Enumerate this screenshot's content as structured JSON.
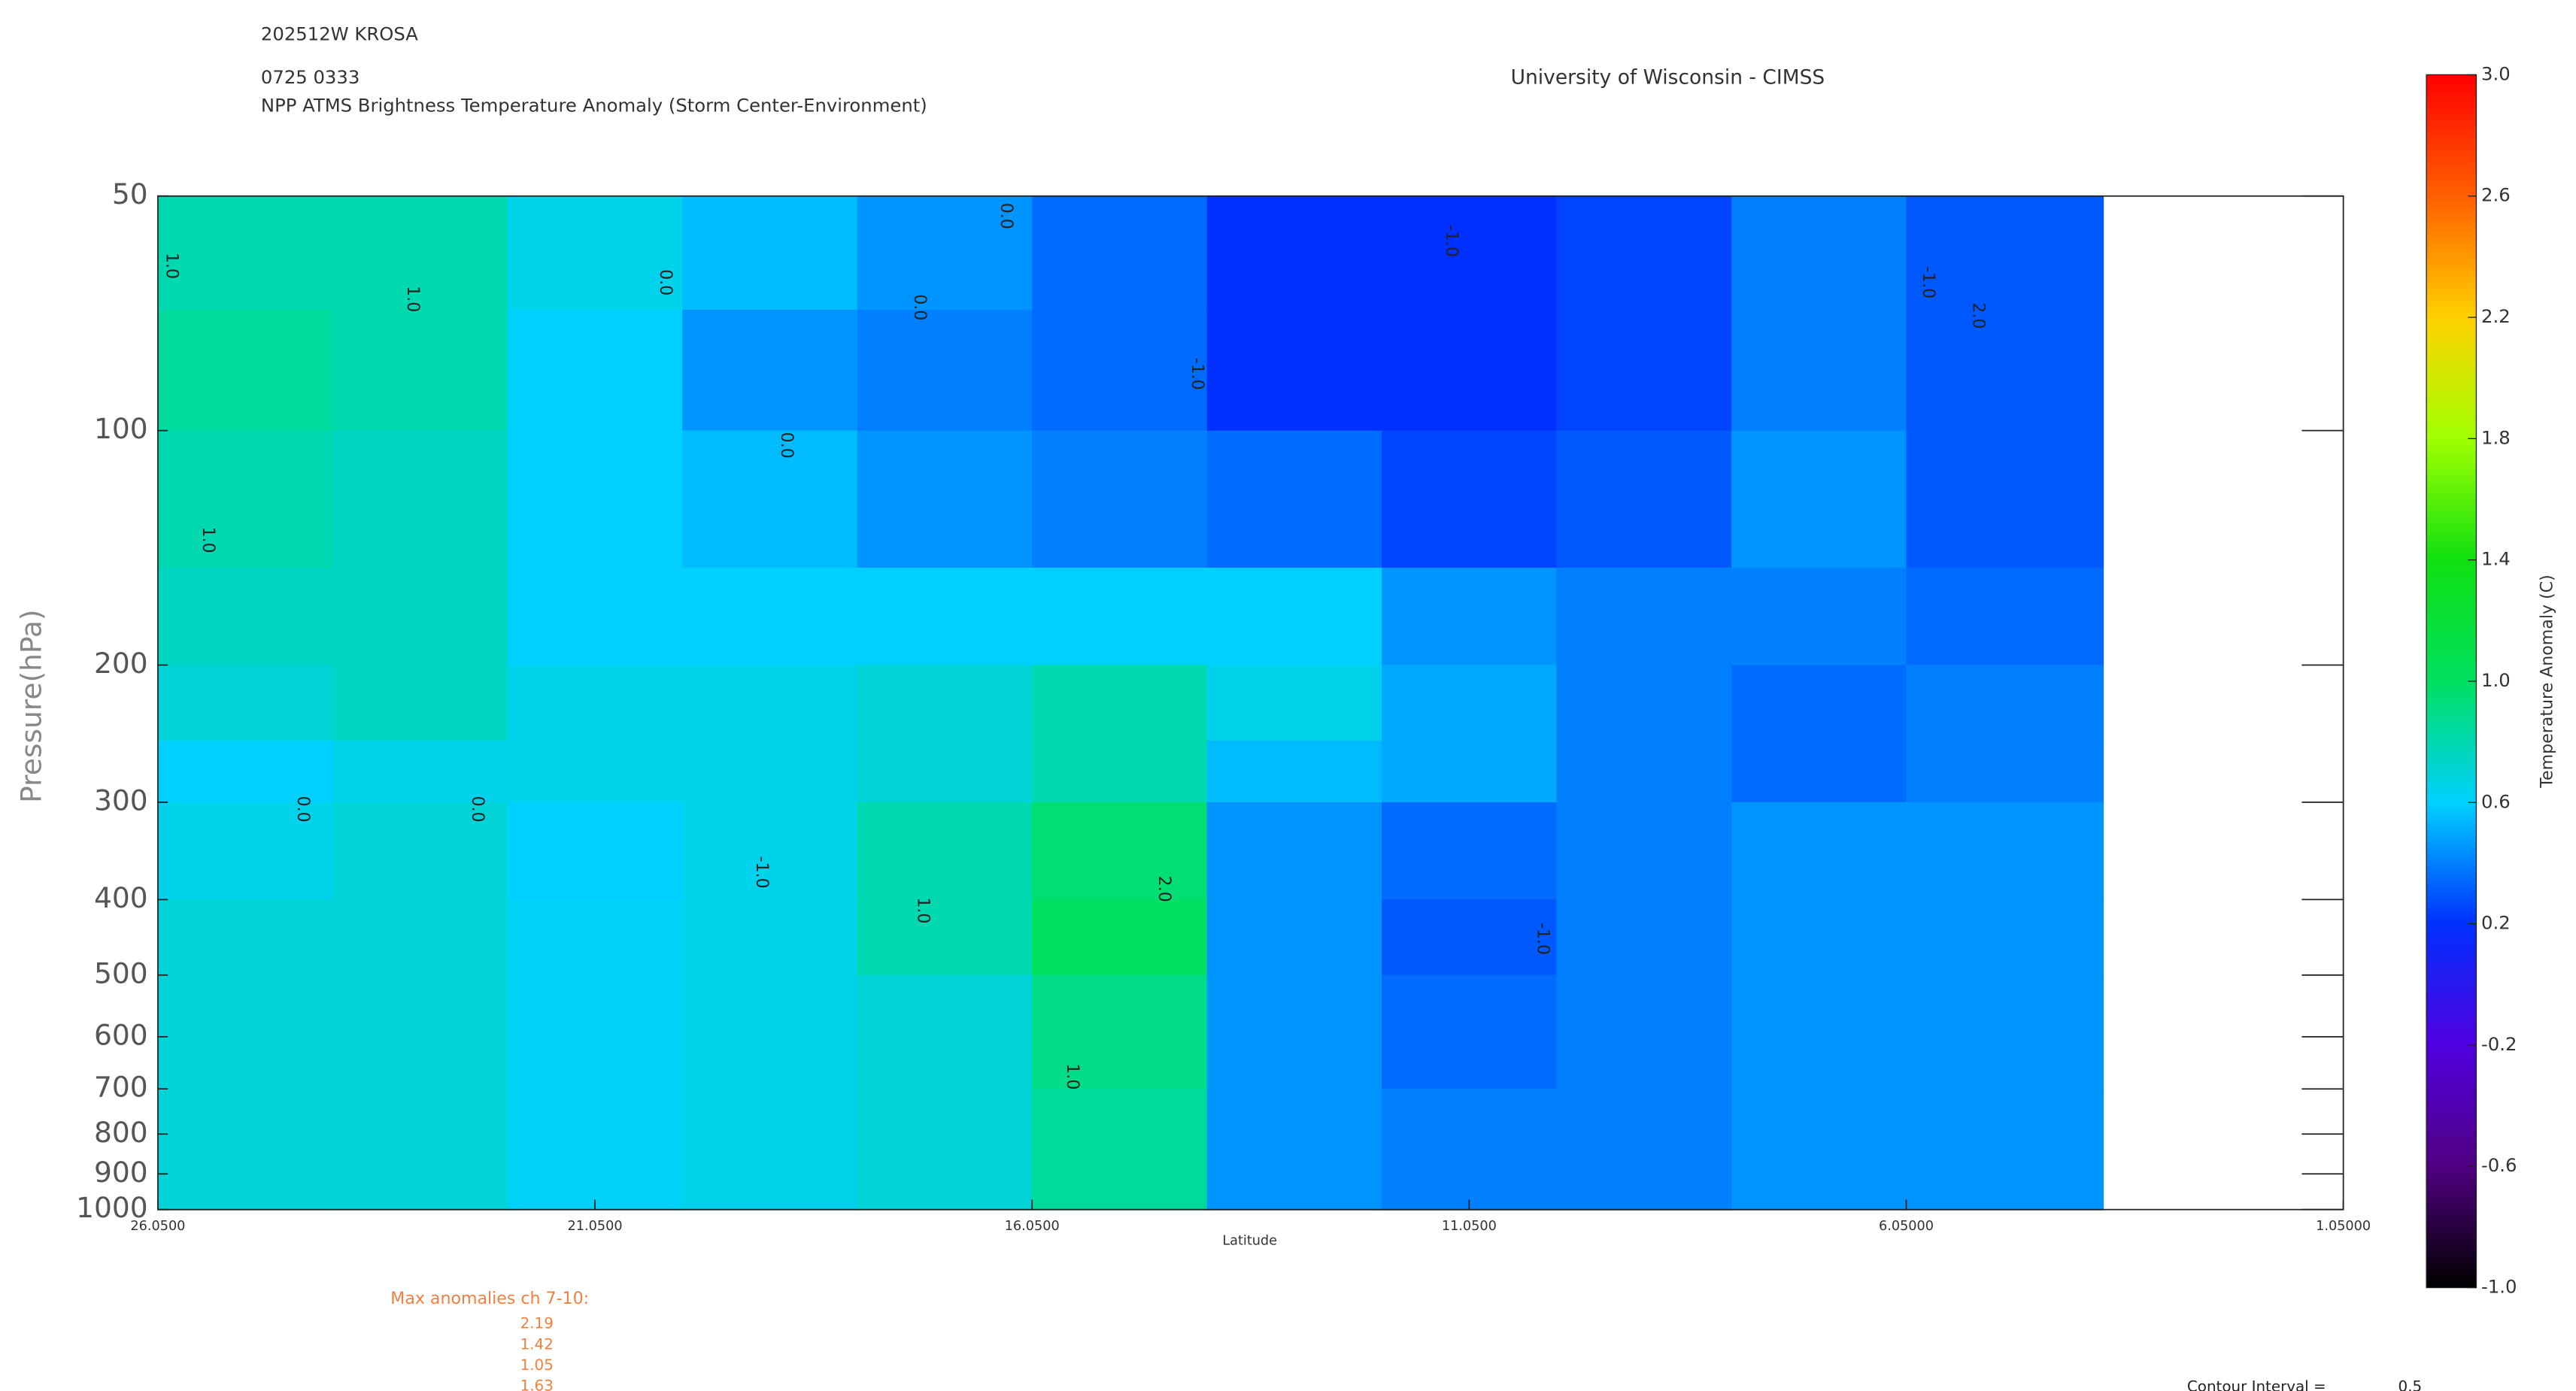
{
  "chart_data": {
    "type": "contour",
    "storm": "202512W KROSA",
    "time": "0725 0333",
    "title": "NPP ATMS Brightness Temperature Anomaly (Storm Center-Environment)",
    "source": "University of Wisconsin - CIMSS",
    "x_label": "Latitude",
    "y_label": "Pressure(hPa)",
    "colorbar_label": "Temperature Anomaly (C)",
    "xlim": [
      26.05,
      1.05
    ],
    "xticks": [
      {
        "value": 26.05,
        "label": "26.0500"
      },
      {
        "value": 21.05,
        "label": "21.0500"
      },
      {
        "value": 16.05,
        "label": "16.0500"
      },
      {
        "value": 11.05,
        "label": "11.0500"
      },
      {
        "value": 6.05,
        "label": "6.05000"
      },
      {
        "value": 1.05,
        "label": "1.05000"
      }
    ],
    "ylim": [
      50,
      1000
    ],
    "log_y": true,
    "yticks": [
      50,
      100,
      200,
      300,
      400,
      500,
      600,
      700,
      800,
      900,
      1000
    ],
    "x_edges": [
      26.05,
      24.05,
      22.05,
      20.05,
      18.05,
      16.05,
      14.05,
      12.05,
      10.05,
      8.05,
      6.05,
      3.8
    ],
    "y_edges": [
      50,
      70,
      100,
      150,
      200,
      250,
      300,
      400,
      500,
      700,
      1000
    ],
    "z": [
      [
        0.8,
        0.8,
        0.65,
        0.55,
        0.45,
        0.35,
        0.2,
        0.2,
        0.25,
        0.4,
        0.3
      ],
      [
        0.85,
        0.8,
        0.6,
        0.45,
        0.4,
        0.35,
        0.2,
        0.2,
        0.25,
        0.4,
        0.3
      ],
      [
        0.8,
        0.75,
        0.6,
        0.55,
        0.45,
        0.4,
        0.35,
        0.25,
        0.3,
        0.45,
        0.3
      ],
      [
        0.75,
        0.75,
        0.6,
        0.6,
        0.6,
        0.6,
        0.6,
        0.45,
        0.4,
        0.4,
        0.35
      ],
      [
        0.7,
        0.75,
        0.65,
        0.65,
        0.7,
        0.8,
        0.65,
        0.5,
        0.4,
        0.35,
        0.4
      ],
      [
        0.6,
        0.65,
        0.65,
        0.65,
        0.7,
        0.8,
        0.55,
        0.5,
        0.4,
        0.35,
        0.4
      ],
      [
        0.65,
        0.7,
        0.6,
        0.65,
        0.8,
        0.95,
        0.45,
        0.35,
        0.4,
        0.45,
        0.45
      ],
      [
        0.7,
        0.7,
        0.62,
        0.65,
        0.8,
        1.0,
        0.45,
        0.3,
        0.4,
        0.45,
        0.45
      ],
      [
        0.7,
        0.7,
        0.62,
        0.65,
        0.7,
        0.9,
        0.45,
        0.35,
        0.4,
        0.45,
        0.45
      ],
      [
        0.7,
        0.7,
        0.62,
        0.65,
        0.7,
        0.85,
        0.45,
        0.4,
        0.4,
        0.45,
        0.45
      ]
    ],
    "contour_labels": [
      "1.0",
      "1.0",
      "1.0",
      "0.0",
      "0.0",
      "0.0",
      "0.0",
      "-1.0",
      "-1.0",
      "2.0",
      "1.0",
      "1.0",
      "2.0",
      "-1.0",
      "-1.0",
      "0.0",
      "0.0",
      "-1.0"
    ],
    "clim": [
      -1,
      3
    ],
    "colormap": [
      "#000000",
      "#500080",
      "#5000e0",
      "#0030ff",
      "#00d0ff",
      "#00e060",
      "#10e010",
      "#a0ff00",
      "#ffd000",
      "#ff6000",
      "#ff0000"
    ],
    "cticks": [
      {
        "value": -1,
        "label": "-1.0"
      },
      -0.6,
      -0.2,
      0.2,
      0.6,
      {
        "value": 1,
        "label": "1.0"
      },
      1.4,
      1.8,
      2.2,
      2.6,
      {
        "value": 3,
        "label": "3.0"
      }
    ],
    "max_anomalies_label": "Max anomalies ch 7-10:",
    "max_anomalies": [
      2.19,
      1.42,
      1.05,
      1.63
    ],
    "contour_interval_label": "Contour Interval =",
    "contour_interval": 0.5
  }
}
